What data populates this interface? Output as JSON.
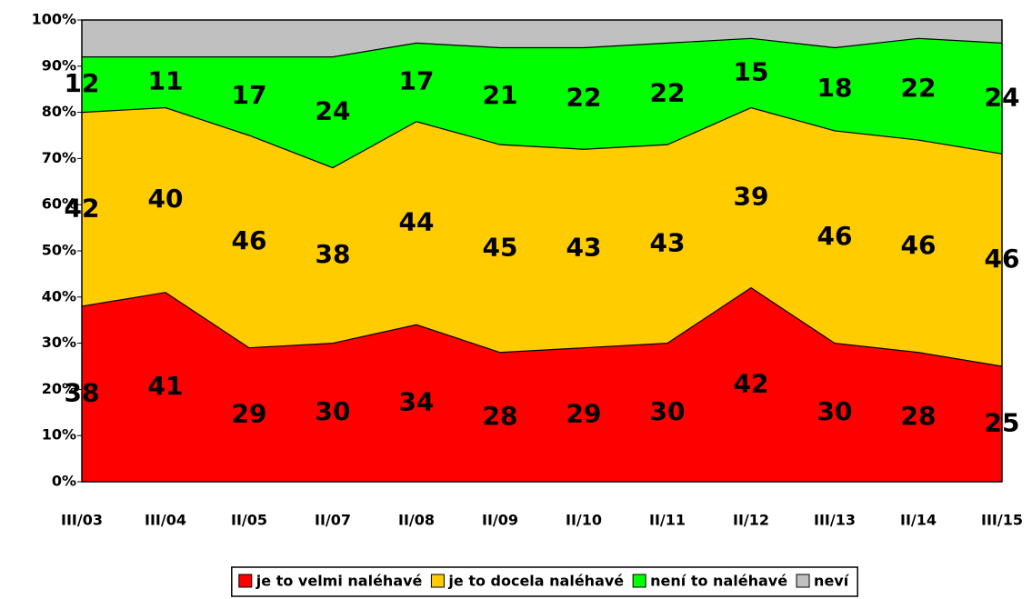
{
  "chart_data": {
    "type": "stacked_area",
    "categories": [
      "III/03",
      "III/04",
      "II/05",
      "II/07",
      "II/08",
      "II/09",
      "II/10",
      "II/11",
      "II/12",
      "III/13",
      "II/14",
      "III/15"
    ],
    "series": [
      {
        "name": "je to velmi naléhavé",
        "color": "#ff0000",
        "values": [
          38,
          41,
          29,
          30,
          34,
          28,
          29,
          30,
          42,
          30,
          28,
          25
        ],
        "labels": true
      },
      {
        "name": "je to docela naléhavé",
        "color": "#ffcc00",
        "values": [
          42,
          40,
          46,
          38,
          44,
          45,
          43,
          43,
          39,
          46,
          46,
          46
        ],
        "labels": true
      },
      {
        "name": "není to naléhavé",
        "color": "#00ff00",
        "values": [
          12,
          11,
          17,
          24,
          17,
          21,
          22,
          22,
          15,
          18,
          22,
          24
        ],
        "labels": true
      },
      {
        "name": "neví",
        "color": "#c0c0c0",
        "values": [
          8,
          8,
          8,
          8,
          5,
          6,
          6,
          5,
          4,
          6,
          4,
          5
        ],
        "labels": false
      }
    ],
    "ylim": [
      0,
      100
    ],
    "yticks": [
      {
        "value": 0,
        "label": "0%"
      },
      {
        "value": 10,
        "label": "10%"
      },
      {
        "value": 20,
        "label": "20%"
      },
      {
        "value": 30,
        "label": "30%"
      },
      {
        "value": 40,
        "label": "40%"
      },
      {
        "value": 50,
        "label": "50%"
      },
      {
        "value": 60,
        "label": "60%"
      },
      {
        "value": 70,
        "label": "70%"
      },
      {
        "value": 80,
        "label": "80%"
      },
      {
        "value": 90,
        "label": "90%"
      },
      {
        "value": 100,
        "label": "100%"
      }
    ],
    "legend": "bottom"
  }
}
